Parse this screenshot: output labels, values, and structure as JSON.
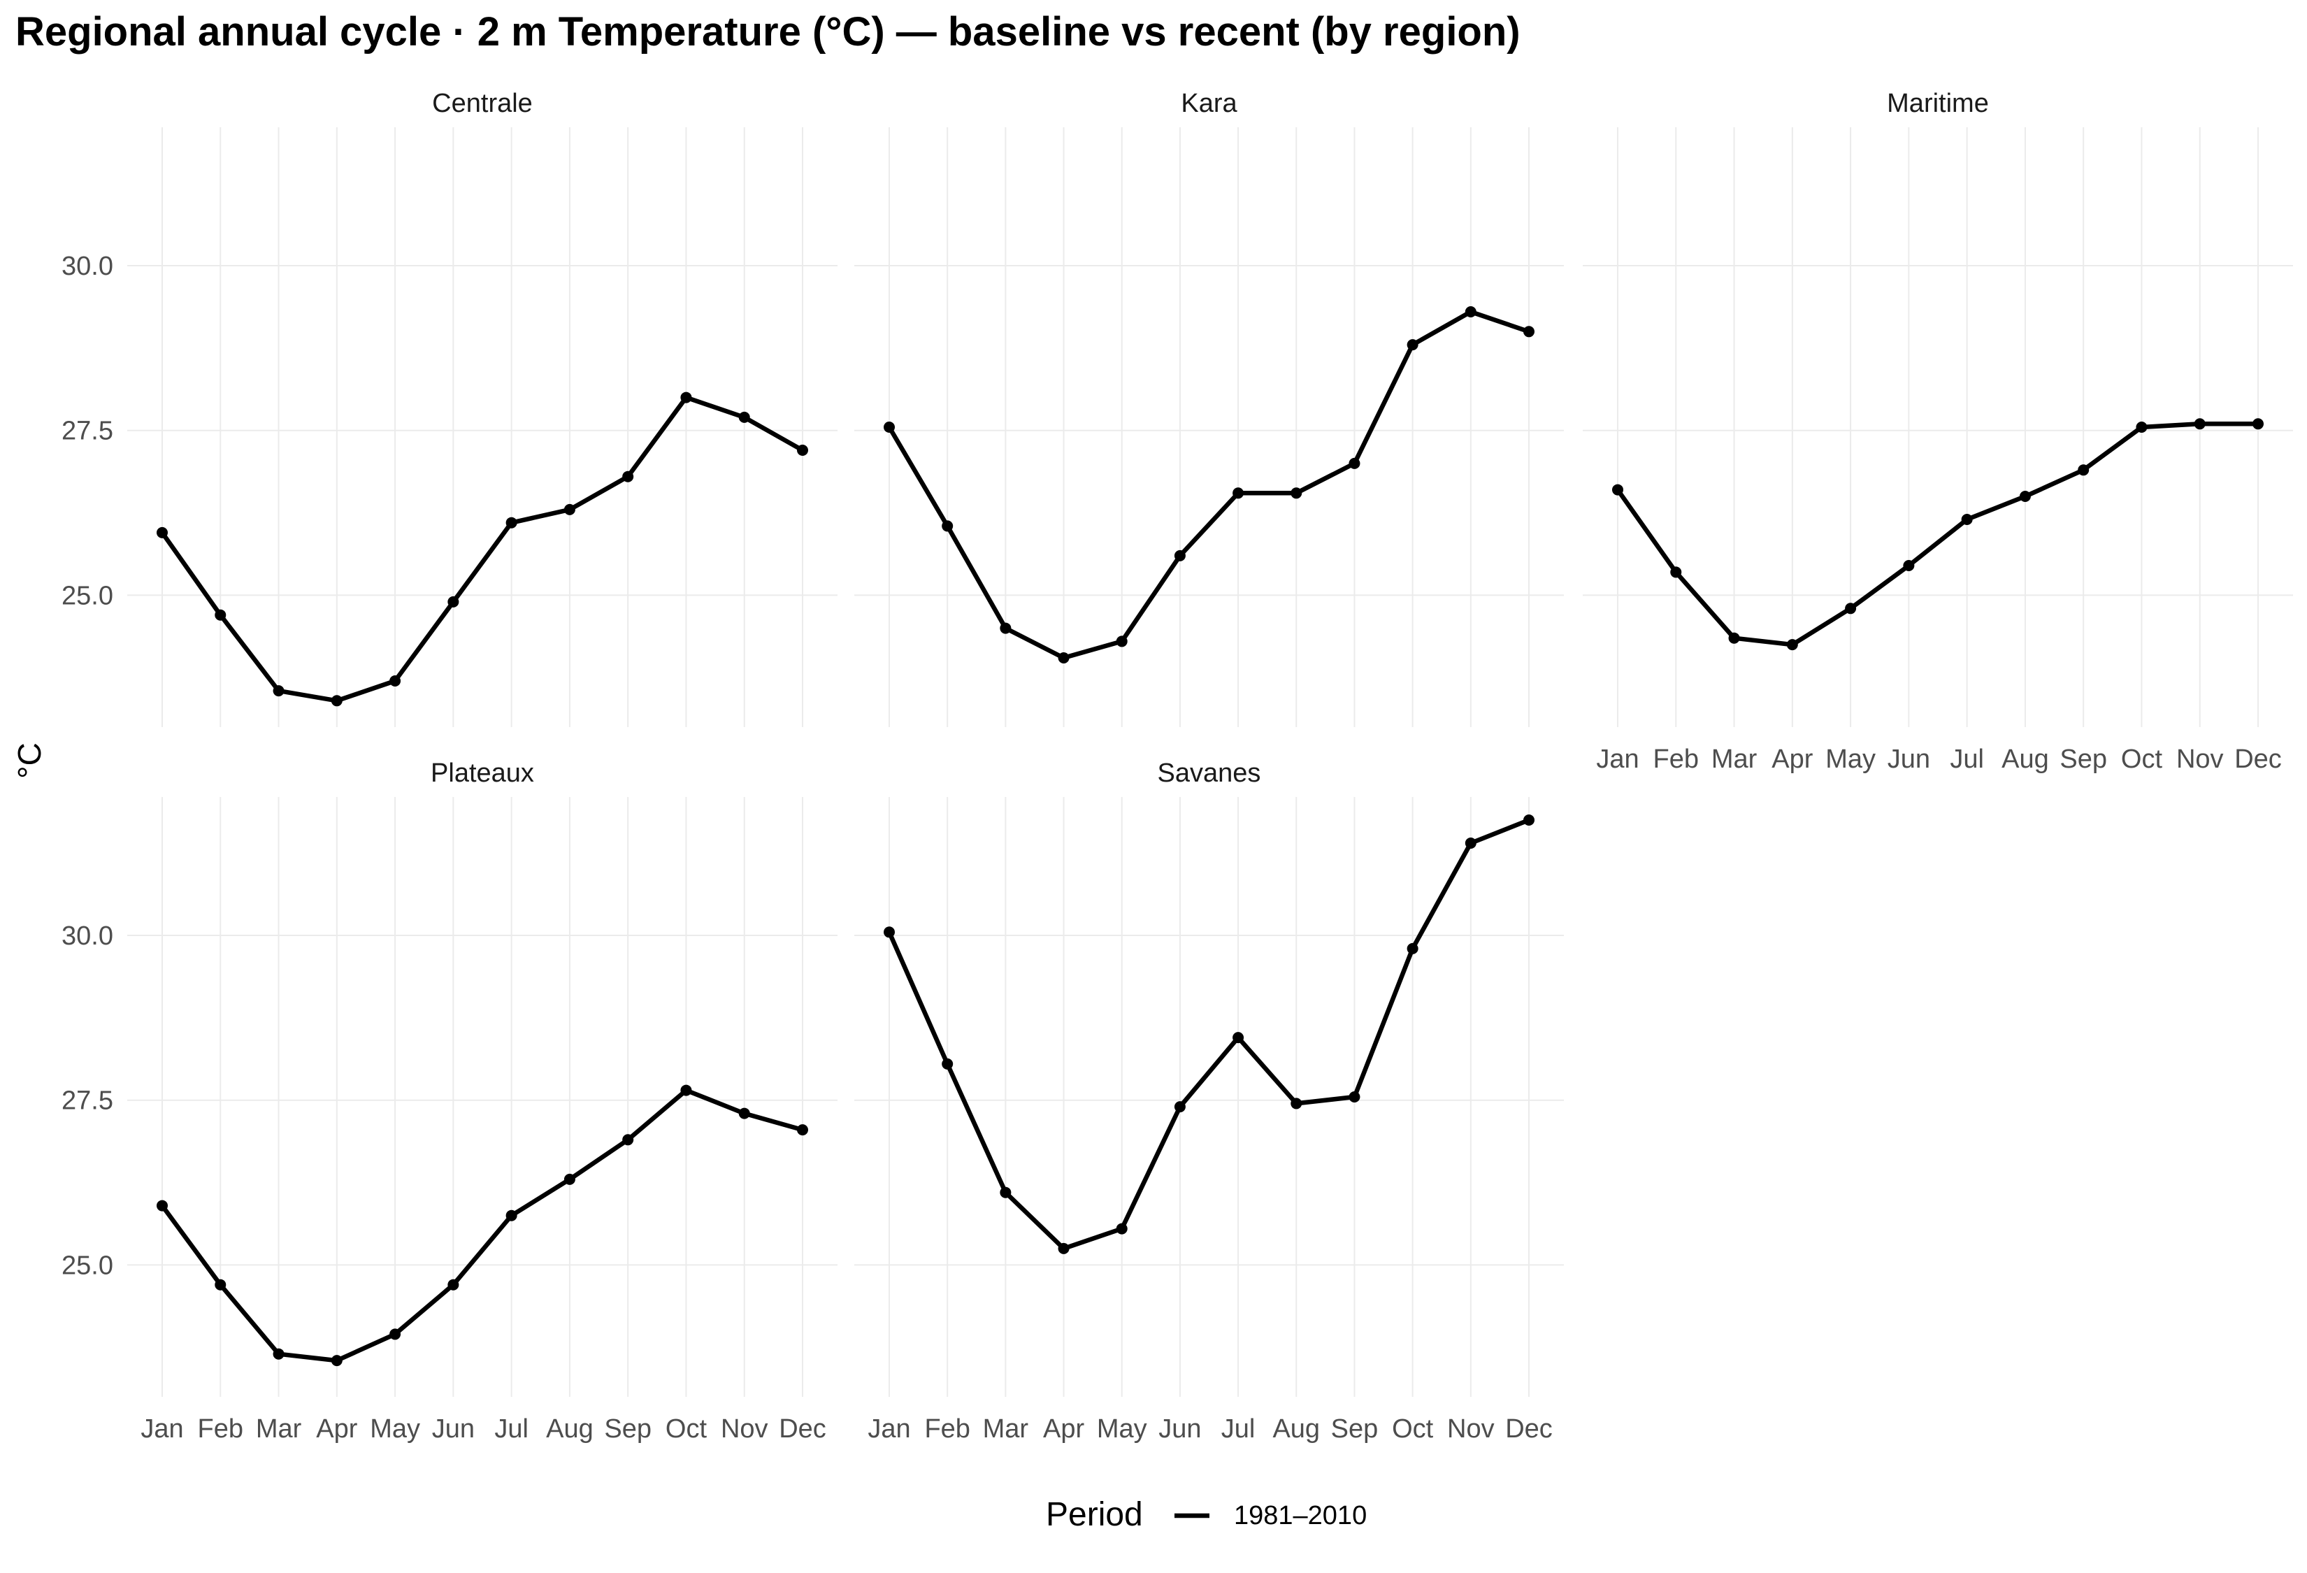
{
  "chart_data": {
    "type": "line",
    "title": "Regional annual cycle · 2 m Temperature (°C) — baseline vs recent (by region)",
    "ylabel": "°C",
    "xlabel": "",
    "categories": [
      "Jan",
      "Feb",
      "Mar",
      "Apr",
      "May",
      "Jun",
      "Jul",
      "Aug",
      "Sep",
      "Oct",
      "Nov",
      "Dec"
    ],
    "ylim": [
      23.0,
      32.1
    ],
    "yticks": [
      "25.0",
      "27.5",
      "30.0"
    ],
    "grid": true,
    "legend": {
      "title": "Period",
      "position": "bottom",
      "entries": [
        "1981–2010"
      ]
    },
    "panels": [
      {
        "region": "Centrale",
        "series": [
          {
            "name": "1981–2010",
            "color": "#000000",
            "values": [
              25.95,
              24.7,
              23.55,
              23.4,
              23.7,
              24.9,
              26.1,
              26.3,
              26.8,
              28.0,
              27.7,
              27.2
            ]
          }
        ]
      },
      {
        "region": "Kara",
        "series": [
          {
            "name": "1981–2010",
            "color": "#000000",
            "values": [
              27.55,
              26.05,
              24.5,
              24.05,
              24.3,
              25.6,
              26.55,
              26.55,
              27.0,
              28.8,
              29.3,
              29.0
            ]
          }
        ]
      },
      {
        "region": "Maritime",
        "series": [
          {
            "name": "1981–2010",
            "color": "#000000",
            "values": [
              26.6,
              25.35,
              24.35,
              24.25,
              24.8,
              25.45,
              26.15,
              26.5,
              26.9,
              27.55,
              27.6,
              27.6
            ]
          }
        ]
      },
      {
        "region": "Plateaux",
        "series": [
          {
            "name": "1981–2010",
            "color": "#000000",
            "values": [
              25.9,
              24.7,
              23.65,
              23.55,
              23.95,
              24.7,
              25.75,
              26.3,
              26.9,
              27.65,
              27.3,
              27.05
            ]
          }
        ]
      },
      {
        "region": "Savanes",
        "series": [
          {
            "name": "1981–2010",
            "color": "#000000",
            "values": [
              30.05,
              28.05,
              26.1,
              25.25,
              25.55,
              27.4,
              28.45,
              27.45,
              27.55,
              29.8,
              31.4,
              31.75
            ]
          }
        ]
      }
    ]
  }
}
